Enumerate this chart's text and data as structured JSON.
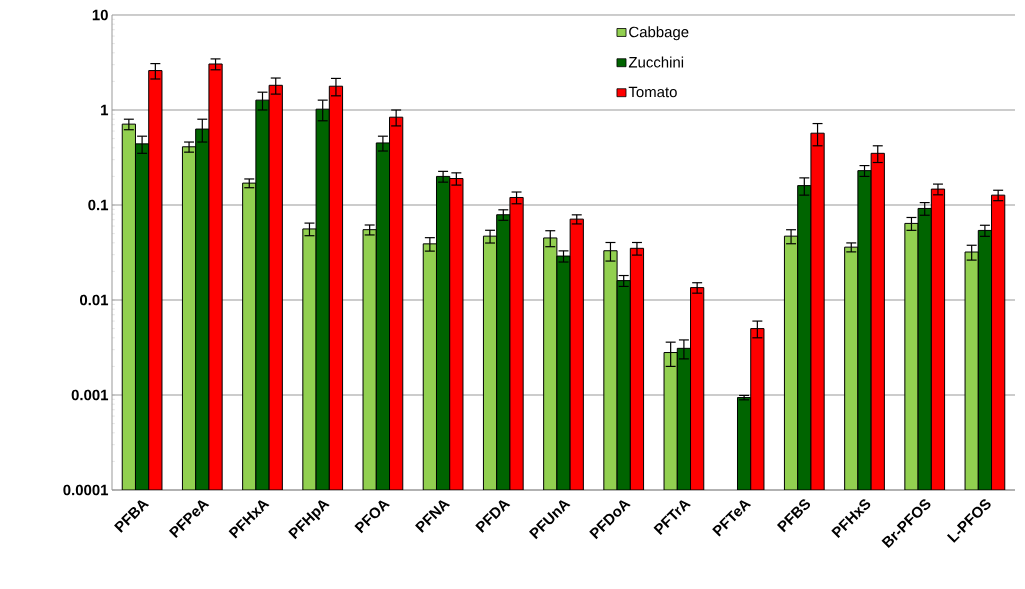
{
  "chart_data": {
    "type": "bar",
    "categories": [
      "PFBA",
      "PFPeA",
      "PFHxA",
      "PFHpA",
      "PFOA",
      "PFNA",
      "PFDA",
      "PFUnA",
      "PFDoA",
      "PFTrA",
      "PFTeA",
      "PFBS",
      "PFHxS",
      "Br-PFOS",
      "L-PFOS"
    ],
    "series": [
      {
        "name": "Cabbage",
        "color": "#92d050",
        "values": [
          0.71,
          0.41,
          0.17,
          0.056,
          0.055,
          0.039,
          0.047,
          0.045,
          0.033,
          0.0028,
          null,
          0.047,
          0.036,
          0.064,
          0.032
        ],
        "errors": [
          0.09,
          0.05,
          0.018,
          0.0085,
          0.0066,
          0.0063,
          0.0072,
          0.0086,
          0.0073,
          0.0008,
          null,
          0.0079,
          0.0039,
          0.0099,
          0.0057
        ]
      },
      {
        "name": "Zucchini",
        "color": "#006400",
        "values": [
          0.44,
          0.63,
          1.27,
          1.02,
          0.45,
          0.2,
          0.079,
          0.029,
          0.016,
          0.0031,
          0.00094,
          0.16,
          0.23,
          0.092,
          0.054
        ],
        "errors": [
          0.09,
          0.17,
          0.27,
          0.25,
          0.08,
          0.026,
          0.01,
          0.0039,
          0.0021,
          0.0007,
          5e-05,
          0.033,
          0.03,
          0.014,
          0.0072
        ]
      },
      {
        "name": "Tomato",
        "color": "#ff0000",
        "values": [
          2.6,
          3.05,
          1.82,
          1.78,
          0.84,
          0.19,
          0.12,
          0.071,
          0.035,
          0.0135,
          0.005,
          0.57,
          0.35,
          0.147,
          0.127
        ],
        "errors": [
          0.48,
          0.4,
          0.35,
          0.37,
          0.16,
          0.028,
          0.017,
          0.0078,
          0.0053,
          0.0017,
          0.001,
          0.15,
          0.07,
          0.019,
          0.016
        ]
      }
    ],
    "ylim": [
      0.0001,
      10
    ],
    "yticks": [
      0.0001,
      0.001,
      0.01,
      0.1,
      1,
      10
    ],
    "log": true,
    "grid": "y",
    "legend": "top"
  }
}
